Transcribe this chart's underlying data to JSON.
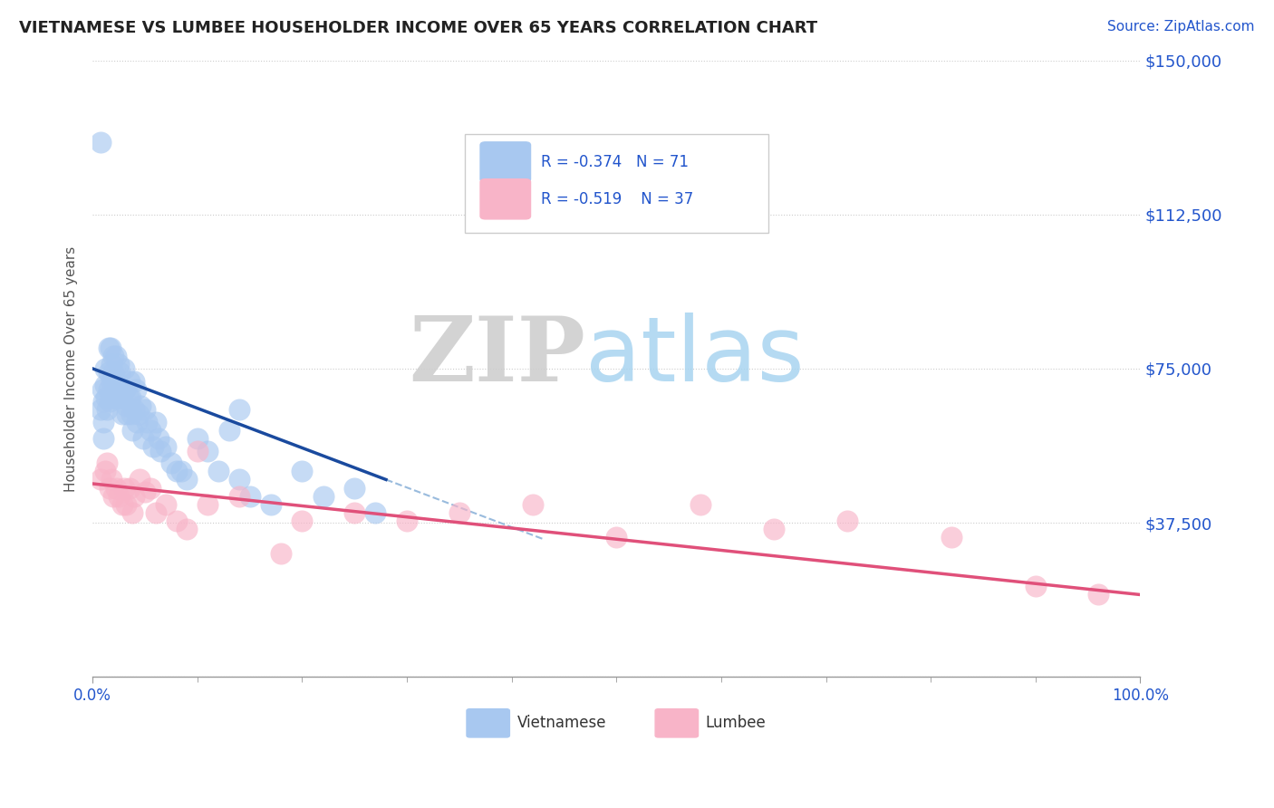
{
  "title": "VIETNAMESE VS LUMBEE HOUSEHOLDER INCOME OVER 65 YEARS CORRELATION CHART",
  "source": "Source: ZipAtlas.com",
  "ylabel": "Householder Income Over 65 years",
  "xlim": [
    0,
    1.0
  ],
  "ylim": [
    0,
    150000
  ],
  "yticks": [
    0,
    37500,
    75000,
    112500,
    150000
  ],
  "ytick_labels": [
    "",
    "$37,500",
    "$75,000",
    "$112,500",
    "$150,000"
  ],
  "xtick_labels": [
    "0.0%",
    "100.0%"
  ],
  "r_vietnamese": -0.374,
  "n_vietnamese": 71,
  "r_lumbee": -0.519,
  "n_lumbee": 37,
  "color_vietnamese": "#a8c8f0",
  "color_lumbee": "#f8b4c8",
  "trend_color_vietnamese": "#1a4a9e",
  "trend_color_lumbee": "#e0507a",
  "background_color": "#ffffff",
  "grid_color": "#cccccc",
  "viet_trend_x0": 0.0,
  "viet_trend_y0": 75000,
  "viet_trend_x1": 0.28,
  "viet_trend_y1": 48000,
  "viet_trend_ext_x0": 0.28,
  "viet_trend_ext_x1": 0.43,
  "lumb_trend_x0": 0.0,
  "lumb_trend_y0": 47000,
  "lumb_trend_x1": 1.0,
  "lumb_trend_y1": 20000,
  "vietnamese_x": [
    0.008,
    0.009,
    0.01,
    0.01,
    0.01,
    0.012,
    0.012,
    0.013,
    0.014,
    0.015,
    0.015,
    0.015,
    0.016,
    0.017,
    0.018,
    0.018,
    0.019,
    0.02,
    0.02,
    0.02,
    0.021,
    0.022,
    0.023,
    0.024,
    0.025,
    0.025,
    0.026,
    0.027,
    0.028,
    0.03,
    0.03,
    0.031,
    0.032,
    0.033,
    0.034,
    0.035,
    0.036,
    0.037,
    0.038,
    0.04,
    0.04,
    0.041,
    0.042,
    0.044,
    0.046,
    0.048,
    0.05,
    0.052,
    0.055,
    0.058,
    0.06,
    0.063,
    0.065,
    0.07,
    0.075,
    0.08,
    0.085,
    0.09,
    0.1,
    0.11,
    0.12,
    0.13,
    0.14,
    0.15,
    0.17,
    0.2,
    0.22,
    0.25,
    0.27,
    0.008,
    0.14
  ],
  "vietnamese_y": [
    130000,
    70000,
    67000,
    62000,
    58000,
    75000,
    71000,
    68000,
    65000,
    80000,
    74000,
    70000,
    67000,
    80000,
    76000,
    72000,
    68000,
    78000,
    74000,
    68000,
    72000,
    78000,
    72000,
    68000,
    76000,
    70000,
    74000,
    68000,
    64000,
    75000,
    70000,
    70000,
    66000,
    64000,
    68000,
    72000,
    68000,
    64000,
    60000,
    72000,
    65000,
    70000,
    62000,
    64000,
    66000,
    58000,
    65000,
    62000,
    60000,
    56000,
    62000,
    58000,
    55000,
    56000,
    52000,
    50000,
    50000,
    48000,
    58000,
    55000,
    50000,
    60000,
    48000,
    44000,
    42000,
    50000,
    44000,
    46000,
    40000,
    65000,
    65000
  ],
  "lumbee_x": [
    0.008,
    0.012,
    0.014,
    0.016,
    0.018,
    0.02,
    0.022,
    0.025,
    0.028,
    0.03,
    0.032,
    0.035,
    0.038,
    0.04,
    0.045,
    0.05,
    0.055,
    0.06,
    0.07,
    0.08,
    0.09,
    0.1,
    0.11,
    0.14,
    0.18,
    0.2,
    0.25,
    0.3,
    0.35,
    0.42,
    0.5,
    0.58,
    0.65,
    0.72,
    0.82,
    0.9,
    0.96
  ],
  "lumbee_y": [
    48000,
    50000,
    52000,
    46000,
    48000,
    44000,
    46000,
    44000,
    42000,
    46000,
    42000,
    46000,
    40000,
    44000,
    48000,
    45000,
    46000,
    40000,
    42000,
    38000,
    36000,
    55000,
    42000,
    44000,
    30000,
    38000,
    40000,
    38000,
    40000,
    42000,
    34000,
    42000,
    36000,
    38000,
    34000,
    22000,
    20000
  ]
}
